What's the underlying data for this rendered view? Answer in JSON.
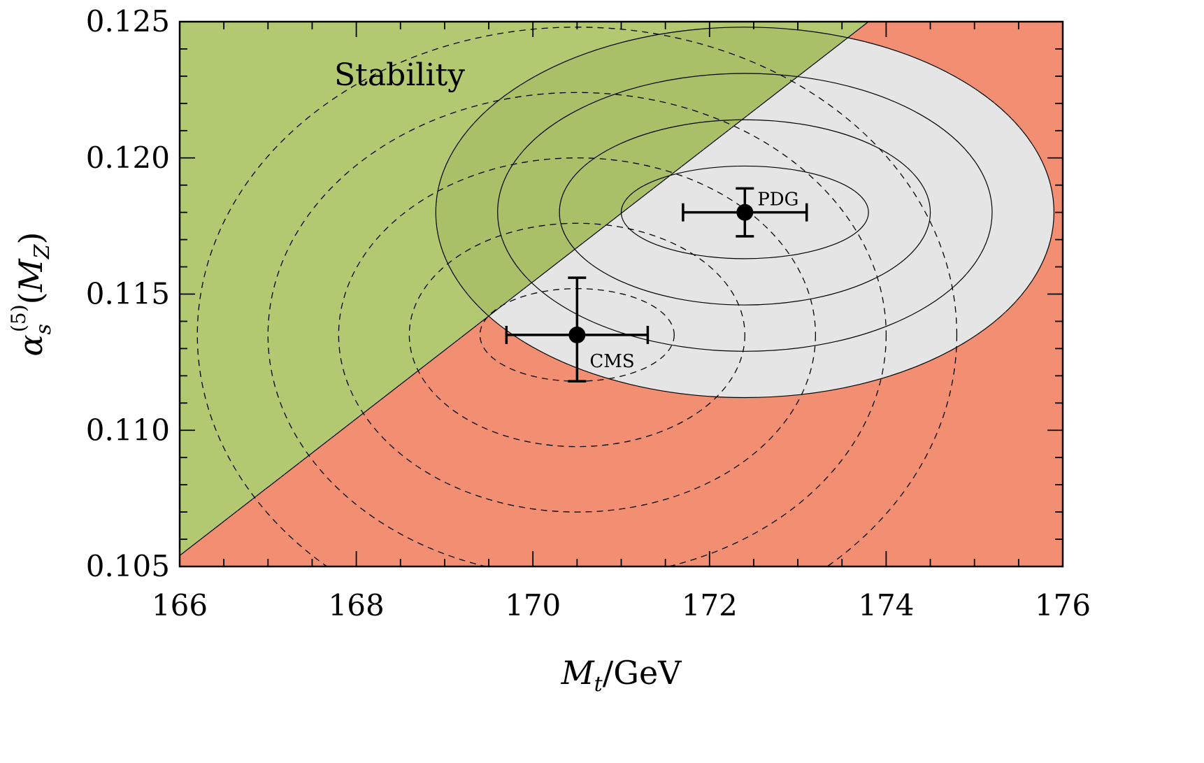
{
  "chart_data": {
    "type": "scatter",
    "xlabel": "M_t/GeV",
    "ylabel": "α_s^(5)(M_Z)",
    "xlim": [
      166,
      176
    ],
    "ylim": [
      0.105,
      0.125
    ],
    "x_ticks": [
      "166",
      "168",
      "170",
      "172",
      "174",
      "176"
    ],
    "y_ticks": [
      "0.105",
      "0.110",
      "0.115",
      "0.120",
      "0.125"
    ],
    "x_tick_values": [
      166,
      168,
      170,
      172,
      174,
      176
    ],
    "y_tick_values": [
      0.105,
      0.11,
      0.115,
      0.12,
      0.125
    ],
    "grid": false,
    "regions": [
      {
        "name": "Stability",
        "color": "#b2c972",
        "boundary": [
          [
            166,
            0.1054
          ],
          [
            173.8,
            0.125
          ]
        ]
      },
      {
        "name": "",
        "color": "#f28f72"
      }
    ],
    "region_label": "Stability",
    "points": [
      {
        "label": "PDG",
        "x": 172.4,
        "y": 0.118,
        "xerr": 0.7,
        "yerr": 0.00088
      },
      {
        "label": "CMS",
        "x": 170.5,
        "y": 0.1135,
        "xerr": 0.8,
        "yerr_low": 0.0017,
        "yerr_high": 0.0021
      }
    ],
    "pdg_contours": {
      "center": [
        172.4,
        0.118
      ],
      "color": "#e5e5e5",
      "ellipses": [
        [
          1.4,
          0.0017
        ],
        [
          2.1,
          0.0034
        ],
        [
          2.8,
          0.0051
        ],
        [
          3.5,
          0.0068
        ]
      ]
    },
    "cms_contours": {
      "center": [
        170.5,
        0.1135
      ],
      "style": "dashed",
      "ellipses": [
        [
          1.1,
          0.0017
        ],
        [
          1.9,
          0.0041
        ],
        [
          2.7,
          0.0065
        ],
        [
          3.5,
          0.0089
        ],
        [
          4.3,
          0.0113
        ]
      ]
    },
    "colors": {
      "stability": "#b2c972",
      "metastability": "#f28f72",
      "pdg_band": "#e5e5e5",
      "overlap": "#a9bf68"
    }
  }
}
